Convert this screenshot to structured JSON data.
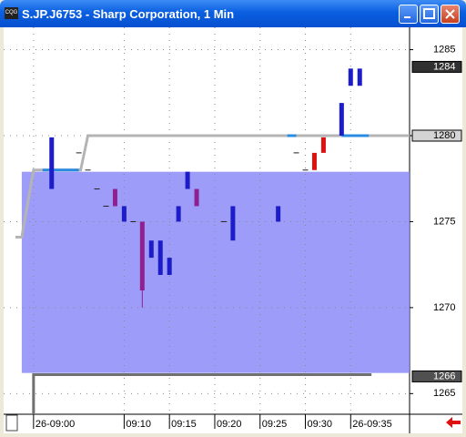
{
  "window": {
    "title": "S.JP.J6753 - Sharp Corporation, 1 Min",
    "icon": "CQG"
  },
  "chart_data": {
    "type": "candlestick",
    "xlim": [
      -3.3,
      41.5
    ],
    "ylim": [
      1263.8,
      1286.3
    ],
    "xticks": [
      {
        "value": 0,
        "label": "26-09:00"
      },
      {
        "value": 10,
        "label": "09:10"
      },
      {
        "value": 15,
        "label": "09:15"
      },
      {
        "value": 20,
        "label": "09:20"
      },
      {
        "value": 25,
        "label": "09:25"
      },
      {
        "value": 30,
        "label": "09:30"
      },
      {
        "value": 35,
        "label": "26-09:35"
      }
    ],
    "yticks": [
      1265,
      1270,
      1275,
      1280,
      1285
    ],
    "grid": true,
    "band": {
      "color": "#8c8cf8",
      "xlim": [
        -1.3,
        41.5
      ],
      "ylim": [
        1266.2,
        1277.9
      ]
    },
    "lines": [
      {
        "color": "#b4b4b4",
        "x": [
          -2,
          -1.3,
          0,
          5.2,
          6,
          41.5
        ],
        "y": [
          1274.1,
          1274.1,
          1278,
          1278,
          1280,
          1280
        ]
      },
      {
        "color": "#2a8ce0",
        "x": [
          1,
          5
        ],
        "y": [
          1278,
          1278
        ]
      },
      {
        "color": "#2a8ce0",
        "x": [
          28,
          29
        ],
        "y": [
          1280,
          1280
        ]
      },
      {
        "color": "#2a8ce0",
        "x": [
          34,
          37
        ],
        "y": [
          1280,
          1280
        ]
      },
      {
        "color": "#707070",
        "x": [
          0,
          0,
          37.3
        ],
        "y": [
          1263.8,
          1266.1,
          1266.1
        ]
      }
    ],
    "bars": [
      {
        "x": 2,
        "open": 1276.9,
        "close": 1279.9,
        "color": "#1c1cc8"
      },
      {
        "x": 5,
        "open": 1279,
        "close": 1279,
        "color": "#202020"
      },
      {
        "x": 6,
        "open": 1278,
        "close": 1278,
        "color": "#202020"
      },
      {
        "x": 7,
        "open": 1276.9,
        "close": 1276.9,
        "color": "#202020"
      },
      {
        "x": 8,
        "open": 1275.9,
        "close": 1275.9,
        "color": "#202020"
      },
      {
        "x": 9,
        "open": 1276.9,
        "close": 1275.9,
        "color": "#902090"
      },
      {
        "x": 10,
        "open": 1275,
        "close": 1275.9,
        "color": "#1c1cc8"
      },
      {
        "x": 11,
        "open": 1275,
        "close": 1275,
        "color": "#202020"
      },
      {
        "x": 12,
        "open": 1275,
        "close": 1271,
        "low": 1270,
        "color": "#902090"
      },
      {
        "x": 13,
        "open": 1272.9,
        "close": 1273.9,
        "color": "#1c1cc8"
      },
      {
        "x": 14,
        "open": 1271.9,
        "close": 1273.9,
        "color": "#1c1cc8"
      },
      {
        "x": 15,
        "open": 1271.9,
        "close": 1272.9,
        "color": "#1c1cc8"
      },
      {
        "x": 16,
        "open": 1275,
        "close": 1275.9,
        "color": "#1c1cc8"
      },
      {
        "x": 17,
        "open": 1276.9,
        "close": 1277.9,
        "color": "#1c1cc8"
      },
      {
        "x": 18,
        "open": 1276.9,
        "close": 1275.9,
        "color": "#902090"
      },
      {
        "x": 21,
        "open": 1275,
        "close": 1275,
        "color": "#202020"
      },
      {
        "x": 22,
        "open": 1273.9,
        "close": 1275.9,
        "color": "#1c1cc8"
      },
      {
        "x": 27,
        "open": 1275,
        "close": 1275.9,
        "color": "#1c1cc8"
      },
      {
        "x": 29,
        "open": 1279,
        "close": 1279,
        "color": "#202020"
      },
      {
        "x": 30,
        "open": 1278,
        "close": 1278,
        "color": "#202020"
      },
      {
        "x": 31,
        "open": 1279,
        "close": 1278,
        "color": "#e01010"
      },
      {
        "x": 32,
        "open": 1279.9,
        "close": 1279,
        "color": "#e01010"
      },
      {
        "x": 34,
        "open": 1280,
        "close": 1281.9,
        "color": "#1c1cc8"
      },
      {
        "x": 35,
        "open": 1282.9,
        "close": 1283.9,
        "color": "#1c1cc8"
      },
      {
        "x": 36,
        "open": 1282.9,
        "close": 1283.9,
        "color": "#1c1cc8"
      }
    ],
    "price_markers": [
      {
        "value": 1284,
        "label": "1284",
        "background": "#303030",
        "color": "#ffffff"
      },
      {
        "value": 1280,
        "label": "1280",
        "background": "#d4d4d4",
        "color": "#000000"
      },
      {
        "value": 1266,
        "label": "1266",
        "background": "#505050",
        "color": "#ffffff"
      }
    ]
  }
}
